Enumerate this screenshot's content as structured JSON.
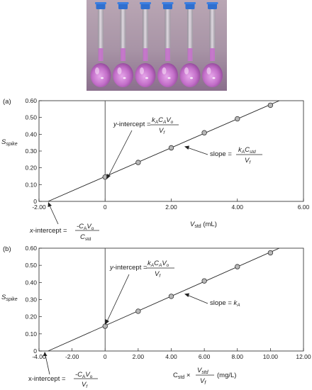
{
  "photo": {
    "flask_count": 6,
    "solution_color": "#c36fc9",
    "cap_color": "#2f6fcf"
  },
  "chart_data": [
    {
      "type": "scatter",
      "panel_label": "(a)",
      "xlabel": "Vstd (mL)",
      "ylabel": "Sspike",
      "xlim": [
        -2.0,
        6.0
      ],
      "ylim": [
        0,
        0.6
      ],
      "x_ticks": [
        "-2.00",
        "0",
        "2.00",
        "4.00",
        "6.00"
      ],
      "y_ticks": [
        "0",
        "0.10",
        "0.20",
        "0.30",
        "0.40",
        "0.50",
        "0.60"
      ],
      "x": [
        0,
        1,
        2,
        3,
        4,
        5
      ],
      "y": [
        0.145,
        0.232,
        0.319,
        0.409,
        0.492,
        0.573
      ],
      "fit": {
        "slope": 0.0858,
        "intercept": 0.148
      },
      "annotations": {
        "y_intercept": {
          "label": "y-intercept =",
          "num": "kACAVo",
          "den": "Vf"
        },
        "slope": {
          "label": "slope =",
          "num": "kACstd",
          "den": "Vf"
        },
        "x_intercept": {
          "label": "x-intercept =",
          "num": "-CAVo",
          "den": "Cstd"
        }
      }
    },
    {
      "type": "scatter",
      "panel_label": "(b)",
      "xlabel": "Cstd × Vstd/Vf (mg/L)",
      "ylabel": "Sspike",
      "xlim": [
        -4.0,
        12.0
      ],
      "ylim": [
        0,
        0.6
      ],
      "x_ticks": [
        "-4.00",
        "-2.00",
        "0",
        "2.00",
        "4.00",
        "6.00",
        "8.00",
        "10.00",
        "12.00"
      ],
      "y_ticks": [
        "0",
        "0.10",
        "0.20",
        "0.30",
        "0.40",
        "0.50",
        "0.60"
      ],
      "x": [
        0,
        2,
        4,
        6,
        8,
        10
      ],
      "y": [
        0.145,
        0.232,
        0.319,
        0.409,
        0.492,
        0.573
      ],
      "fit": {
        "slope": 0.0429,
        "intercept": 0.148
      },
      "annotations": {
        "y_intercept": {
          "label": "y-intercept =",
          "num": "kACAVo",
          "den": "Vf"
        },
        "slope": {
          "label": "slope = kA"
        },
        "x_intercept": {
          "label": "x-intercept =",
          "num": "-CAVo",
          "den": "Vf"
        }
      }
    }
  ]
}
